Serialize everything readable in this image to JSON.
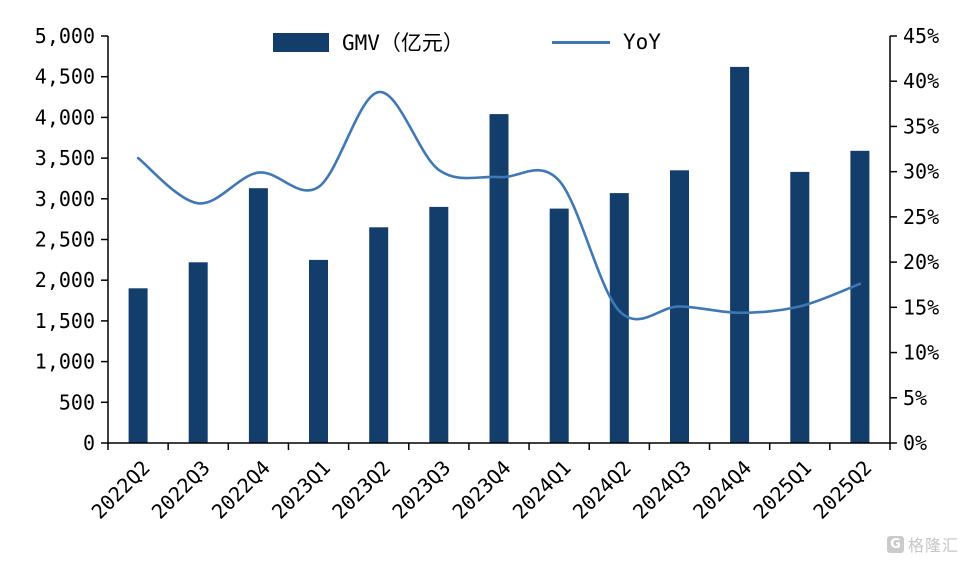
{
  "chart_data": {
    "type": "combo_bar_line",
    "grid": false,
    "legend_position": "top-center",
    "categories": [
      "2022Q2",
      "2022Q3",
      "2022Q4",
      "2023Q1",
      "2023Q2",
      "2023Q3",
      "2023Q4",
      "2024Q1",
      "2024Q2",
      "2024Q3",
      "2024Q4",
      "2025Q1",
      "2025Q2"
    ],
    "series": [
      {
        "name": "GMV（亿元）",
        "type": "bar",
        "axis": "left",
        "color": "#133e6c",
        "values": [
          1900,
          2220,
          3130,
          2250,
          2650,
          2900,
          4040,
          2880,
          3070,
          3350,
          4620,
          3330,
          3590
        ]
      },
      {
        "name": "YoY",
        "type": "line",
        "axis": "right",
        "color": "#3f78b5",
        "values": [
          31.5,
          26.5,
          29.9,
          28.3,
          38.8,
          30.2,
          29.4,
          29.0,
          14.6,
          15.1,
          14.4,
          15.1,
          17.6
        ]
      }
    ],
    "left_axis": {
      "min": 0,
      "max": 5000,
      "step": 500,
      "tick_labels": [
        "0",
        "500",
        "1,000",
        "1,500",
        "2,000",
        "2,500",
        "3,000",
        "3,500",
        "4,000",
        "4,500",
        "5,000"
      ]
    },
    "right_axis": {
      "min": 0,
      "max": 45,
      "step": 5,
      "tick_labels": [
        "0%",
        "5%",
        "10%",
        "15%",
        "20%",
        "25%",
        "30%",
        "35%",
        "40%",
        "45%"
      ]
    },
    "legend": {
      "bar_label": "GMV（亿元）",
      "line_label": "YoY"
    }
  },
  "watermark": {
    "logo_letter": "G",
    "text": "格隆汇"
  }
}
